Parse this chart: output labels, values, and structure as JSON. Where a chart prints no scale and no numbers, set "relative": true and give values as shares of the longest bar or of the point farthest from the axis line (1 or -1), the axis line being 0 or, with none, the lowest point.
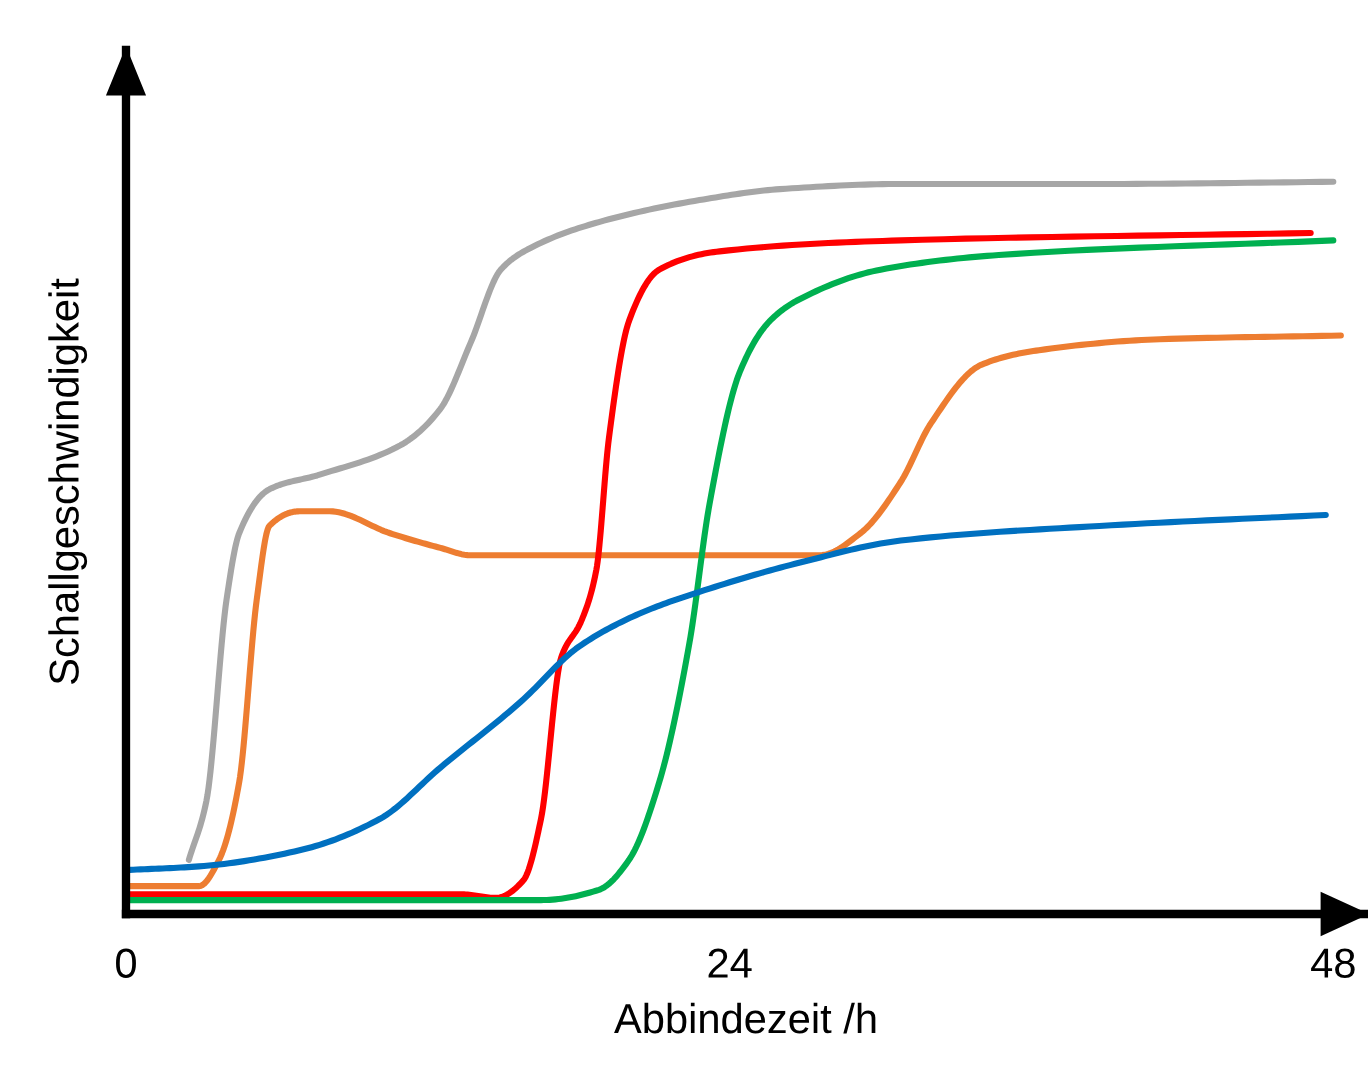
{
  "chart_data": {
    "type": "line",
    "relative": true,
    "xlabel": "Abbindezeit /h",
    "ylabel": "Schallgeschwindigkeit",
    "xlim": [
      0,
      49.3
    ],
    "xticks": [
      0,
      24,
      48
    ],
    "tick_labels": "x",
    "grid": false,
    "marker": "none",
    "line_style": "solid",
    "series": [
      {
        "color": "#a6a6a6",
        "x": [
          2.5,
          3.2,
          4.0,
          4.5,
          5.7,
          7.7,
          10.9,
          12.5,
          13.7,
          14.9,
          16.1,
          18.8,
          22.8,
          26,
          30.8,
          38.7,
          48
        ],
        "values": [
          0.074,
          0.155,
          0.43,
          0.52,
          0.58,
          0.6,
          0.64,
          0.69,
          0.78,
          0.88,
          0.91,
          0.945,
          0.975,
          0.99,
          0.997,
          0.997,
          1.0
        ]
      },
      {
        "color": "#ed7d31",
        "x": [
          0,
          2.9,
          3.7,
          4.5,
          5.2,
          5.7,
          6.9,
          8.1,
          10.5,
          12.5,
          13.7,
          18.8,
          25.2,
          27.6,
          29.2,
          30.8,
          32,
          34,
          36.3,
          41.1,
          48.3
        ],
        "values": [
          0.038,
          0.038,
          0.074,
          0.18,
          0.43,
          0.53,
          0.55,
          0.55,
          0.52,
          0.5,
          0.49,
          0.49,
          0.49,
          0.49,
          0.52,
          0.59,
          0.67,
          0.75,
          0.77,
          0.785,
          0.79
        ]
      },
      {
        "color": "#ff0000",
        "x": [
          0,
          13.3,
          14.7,
          15.8,
          16.5,
          17.3,
          18.1,
          18.7,
          19.2,
          20,
          21.2,
          23.6,
          30.8,
          47.1
        ],
        "values": [
          0.027,
          0.027,
          0.022,
          0.046,
          0.13,
          0.35,
          0.4,
          0.47,
          0.65,
          0.81,
          0.88,
          0.905,
          0.92,
          0.93
        ]
      },
      {
        "color": "#00b050",
        "x": [
          0,
          16.5,
          18.8,
          20,
          21.2,
          22.4,
          23.2,
          24.4,
          25.6,
          26.8,
          30,
          34.7,
          48
        ],
        "values": [
          0.019,
          0.019,
          0.033,
          0.074,
          0.18,
          0.37,
          0.56,
          0.74,
          0.81,
          0.84,
          0.88,
          0.9,
          0.92
        ]
      },
      {
        "color": "#0070c0",
        "x": [
          0,
          2.9,
          6.9,
          10.1,
          12.5,
          15.7,
          18,
          20.4,
          22.8,
          26.8,
          30.8,
          38.7,
          47.7
        ],
        "values": [
          0.06,
          0.065,
          0.087,
          0.13,
          0.2,
          0.29,
          0.365,
          0.41,
          0.44,
          0.48,
          0.51,
          0.53,
          0.545
        ]
      }
    ]
  }
}
